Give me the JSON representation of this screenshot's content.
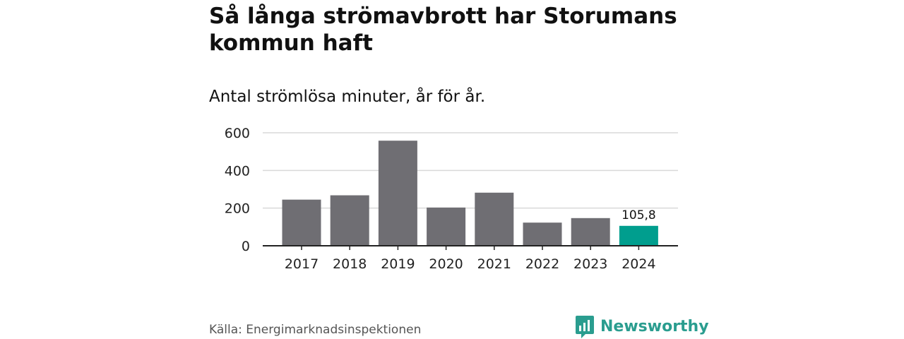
{
  "header": {
    "title": "Så långa strömavbrott har Storumans kommun haft",
    "subtitle": "Antal strömlösa minuter, år för år."
  },
  "chart_data": {
    "type": "bar",
    "categories": [
      "2017",
      "2018",
      "2019",
      "2020",
      "2021",
      "2022",
      "2023",
      "2024"
    ],
    "values": [
      245,
      268,
      558,
      203,
      282,
      123,
      147,
      105.8
    ],
    "highlight_index": 7,
    "data_label": "105,8",
    "yticks": [
      0,
      200,
      400,
      600
    ],
    "ylim": [
      0,
      600
    ],
    "grid": true,
    "bar_color": "#6f6e73",
    "highlight_color": "#009e8e"
  },
  "footer": {
    "source": "Källa: Energimarknadsinspektionen",
    "brand": "Newsworthy",
    "brand_color": "#2a9d8f"
  }
}
